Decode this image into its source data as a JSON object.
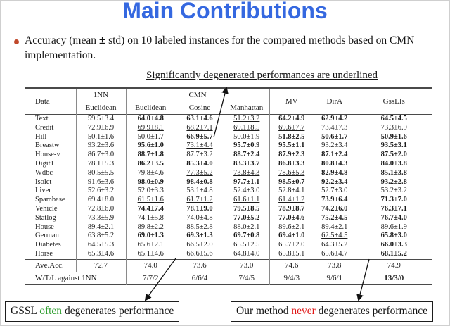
{
  "slide": {
    "title": "Main Contributions",
    "title_color": "#3568E0",
    "bullet_color": "#C0492B",
    "bullet": {
      "pre": "Accuracy (mean ",
      "pm": "±",
      "post": " std) on 10 labeled instances for the compared methods based on CMN implementation."
    },
    "annotation": "Significantly degenerated performances are underlined"
  },
  "table": {
    "header": {
      "data": "Data",
      "nn_line1": "1NN",
      "nn_line2": "Euclidean",
      "cmn_group": "CMN",
      "cmn_sub": [
        "Euclidean",
        "Cosine",
        "Manhattan"
      ],
      "mv": "MV",
      "dira": "DirA",
      "gssl": "GssLIs"
    },
    "legend": {
      "bold_means": "best-type highlight (bold)",
      "underline_means": "significantly degenerated (underlined)"
    },
    "rows": [
      {
        "name": "Text",
        "cells": [
          {
            "v": "59.5±3.4",
            "f": ""
          },
          {
            "v": "64.0±4.8",
            "f": "b"
          },
          {
            "v": "63.1±4.6",
            "f": "b"
          },
          {
            "v": "51.2±3.2",
            "f": "u"
          },
          {
            "v": "64.2±4.9",
            "f": "b"
          },
          {
            "v": "62.9±4.2",
            "f": "b"
          },
          {
            "v": "64.5±4.5",
            "f": "b"
          }
        ]
      },
      {
        "name": "Credit",
        "cells": [
          {
            "v": "72.9±6.9",
            "f": ""
          },
          {
            "v": "69.9±8.1",
            "f": "u"
          },
          {
            "v": "68.2±7.1",
            "f": "u"
          },
          {
            "v": "69.1±8.5",
            "f": "u"
          },
          {
            "v": "69.6±7.7",
            "f": "u"
          },
          {
            "v": "73.4±7.3",
            "f": ""
          },
          {
            "v": "73.3±6.9",
            "f": ""
          }
        ]
      },
      {
        "name": "Hill",
        "cells": [
          {
            "v": "50.1±1.6",
            "f": ""
          },
          {
            "v": "50.0±1.7",
            "f": ""
          },
          {
            "v": "66.9±5.7",
            "f": "b"
          },
          {
            "v": "50.0±1.9",
            "f": ""
          },
          {
            "v": "51.8±2.5",
            "f": "b"
          },
          {
            "v": "50.6±1.7",
            "f": "b"
          },
          {
            "v": "50.9±1.6",
            "f": "b"
          }
        ]
      },
      {
        "name": "Breastw",
        "cells": [
          {
            "v": "93.2±3.6",
            "f": ""
          },
          {
            "v": "95.6±1.0",
            "f": "b"
          },
          {
            "v": "73.1±4.4",
            "f": "u"
          },
          {
            "v": "95.7±0.9",
            "f": "b"
          },
          {
            "v": "95.5±1.1",
            "f": "b"
          },
          {
            "v": "93.2±3.4",
            "f": ""
          },
          {
            "v": "93.5±3.1",
            "f": "b"
          }
        ]
      },
      {
        "name": "House-v",
        "cells": [
          {
            "v": "86.7±3.0",
            "f": ""
          },
          {
            "v": "88.7±1.8",
            "f": "b"
          },
          {
            "v": "87.7±3.2",
            "f": ""
          },
          {
            "v": "88.7±2.4",
            "f": "b"
          },
          {
            "v": "87.9±2.3",
            "f": "b"
          },
          {
            "v": "87.1±2.4",
            "f": "b"
          },
          {
            "v": "87.5±2.0",
            "f": "b"
          }
        ]
      },
      {
        "name": "Digit1",
        "cells": [
          {
            "v": "78.1±5.3",
            "f": ""
          },
          {
            "v": "86.2±3.5",
            "f": "b"
          },
          {
            "v": "85.3±4.0",
            "f": "b"
          },
          {
            "v": "83.3±3.7",
            "f": "b"
          },
          {
            "v": "86.8±3.3",
            "f": "b"
          },
          {
            "v": "80.8±4.3",
            "f": "b"
          },
          {
            "v": "84.0±3.8",
            "f": "b"
          }
        ]
      },
      {
        "name": "Wdbc",
        "cells": [
          {
            "v": "80.5±5.5",
            "f": ""
          },
          {
            "v": "79.8±4.6",
            "f": ""
          },
          {
            "v": "77.3±5.2",
            "f": "u"
          },
          {
            "v": "73.8±4.3",
            "f": "u"
          },
          {
            "v": "78.6±5.3",
            "f": "u"
          },
          {
            "v": "82.9±4.8",
            "f": "b"
          },
          {
            "v": "85.1±3.8",
            "f": "b"
          }
        ]
      },
      {
        "name": "Isolet",
        "cells": [
          {
            "v": "91.6±3.6",
            "f": ""
          },
          {
            "v": "98.0±0.9",
            "f": "b"
          },
          {
            "v": "98.4±0.8",
            "f": "b"
          },
          {
            "v": "97.7±1.1",
            "f": "b"
          },
          {
            "v": "98.5±0.7",
            "f": "b"
          },
          {
            "v": "92.2±3.4",
            "f": "b"
          },
          {
            "v": "93.2±2.8",
            "f": "b"
          }
        ]
      },
      {
        "name": "Liver",
        "cells": [
          {
            "v": "52.6±3.2",
            "f": ""
          },
          {
            "v": "52.0±3.3",
            "f": ""
          },
          {
            "v": "53.1±4.8",
            "f": ""
          },
          {
            "v": "52.4±3.0",
            "f": ""
          },
          {
            "v": "52.8±4.1",
            "f": ""
          },
          {
            "v": "52.7±3.0",
            "f": ""
          },
          {
            "v": "53.2±3.2",
            "f": ""
          }
        ]
      },
      {
        "name": "Spambase",
        "cells": [
          {
            "v": "69.4±8.0",
            "f": ""
          },
          {
            "v": "61.5±1.6",
            "f": "u"
          },
          {
            "v": "61.7±1.2",
            "f": "u"
          },
          {
            "v": "61.6±1.1",
            "f": "u"
          },
          {
            "v": "61.4±1.2",
            "f": "u"
          },
          {
            "v": "73.9±6.4",
            "f": "b"
          },
          {
            "v": "71.3±7.0",
            "f": "b"
          }
        ]
      },
      {
        "name": "Vehicle",
        "cells": [
          {
            "v": "72.8±6.0",
            "f": ""
          },
          {
            "v": "74.4±7.4",
            "f": "b"
          },
          {
            "v": "78.1±9.0",
            "f": "b"
          },
          {
            "v": "79.5±8.5",
            "f": "b"
          },
          {
            "v": "78.9±8.7",
            "f": "b"
          },
          {
            "v": "74.2±6.0",
            "f": "b"
          },
          {
            "v": "76.3±7.1",
            "f": "b"
          }
        ]
      },
      {
        "name": "Statlog",
        "cells": [
          {
            "v": "73.3±5.9",
            "f": ""
          },
          {
            "v": "74.1±5.8",
            "f": ""
          },
          {
            "v": "74.0±4.8",
            "f": ""
          },
          {
            "v": "77.0±5.2",
            "f": "b"
          },
          {
            "v": "77.0±4.6",
            "f": "b"
          },
          {
            "v": "75.2±4.5",
            "f": "b"
          },
          {
            "v": "76.7±4.0",
            "f": "b"
          }
        ]
      },
      {
        "name": "House",
        "cells": [
          {
            "v": "89.4±2.1",
            "f": ""
          },
          {
            "v": "89.8±2.2",
            "f": ""
          },
          {
            "v": "88.5±2.8",
            "f": ""
          },
          {
            "v": "88.0±2.1",
            "f": "u"
          },
          {
            "v": "89.6±2.1",
            "f": ""
          },
          {
            "v": "89.4±2.1",
            "f": ""
          },
          {
            "v": "89.6±1.9",
            "f": ""
          }
        ]
      },
      {
        "name": "German",
        "cells": [
          {
            "v": "63.8±5.2",
            "f": ""
          },
          {
            "v": "69.0±1.3",
            "f": "b"
          },
          {
            "v": "69.3±1.3",
            "f": "b"
          },
          {
            "v": "69.7±0.8",
            "f": "b"
          },
          {
            "v": "69.4±1.0",
            "f": "b"
          },
          {
            "v": "62.5±4.5",
            "f": "u"
          },
          {
            "v": "65.8±3.0",
            "f": "b"
          }
        ]
      },
      {
        "name": "Diabetes",
        "cells": [
          {
            "v": "64.5±5.3",
            "f": ""
          },
          {
            "v": "65.6±2.1",
            "f": ""
          },
          {
            "v": "66.5±2.0",
            "f": ""
          },
          {
            "v": "65.5±2.5",
            "f": ""
          },
          {
            "v": "65.7±2.0",
            "f": ""
          },
          {
            "v": "64.3±5.2",
            "f": ""
          },
          {
            "v": "66.0±3.3",
            "f": "b"
          }
        ]
      },
      {
        "name": "Horse",
        "cells": [
          {
            "v": "65.3±4.6",
            "f": ""
          },
          {
            "v": "65.1±4.6",
            "f": ""
          },
          {
            "v": "66.6±5.6",
            "f": ""
          },
          {
            "v": "64.8±4.0",
            "f": ""
          },
          {
            "v": "65.8±5.1",
            "f": ""
          },
          {
            "v": "65.6±4.7",
            "f": ""
          },
          {
            "v": "68.1±5.2",
            "f": "b"
          }
        ]
      }
    ],
    "avg": {
      "label": "Ave.Acc.",
      "values": [
        "72.7",
        "74.0",
        "73.6",
        "73.0",
        "74.6",
        "73.8",
        "74.9"
      ]
    },
    "wtl": {
      "label": "W/T/L against 1NN",
      "values": [
        "7/7/2",
        "6/6/4",
        "7/4/5",
        "9/4/3",
        "9/6/1",
        "13/3/0"
      ]
    }
  },
  "callouts": {
    "left": {
      "pre": "GSSL ",
      "highlight": "often",
      "post": " degenerates performance",
      "highlight_color": "#2E9E2E"
    },
    "right": {
      "pre": "Our method ",
      "highlight": "never",
      "post": " degenerates performance",
      "highlight_color": "#E01616"
    }
  }
}
